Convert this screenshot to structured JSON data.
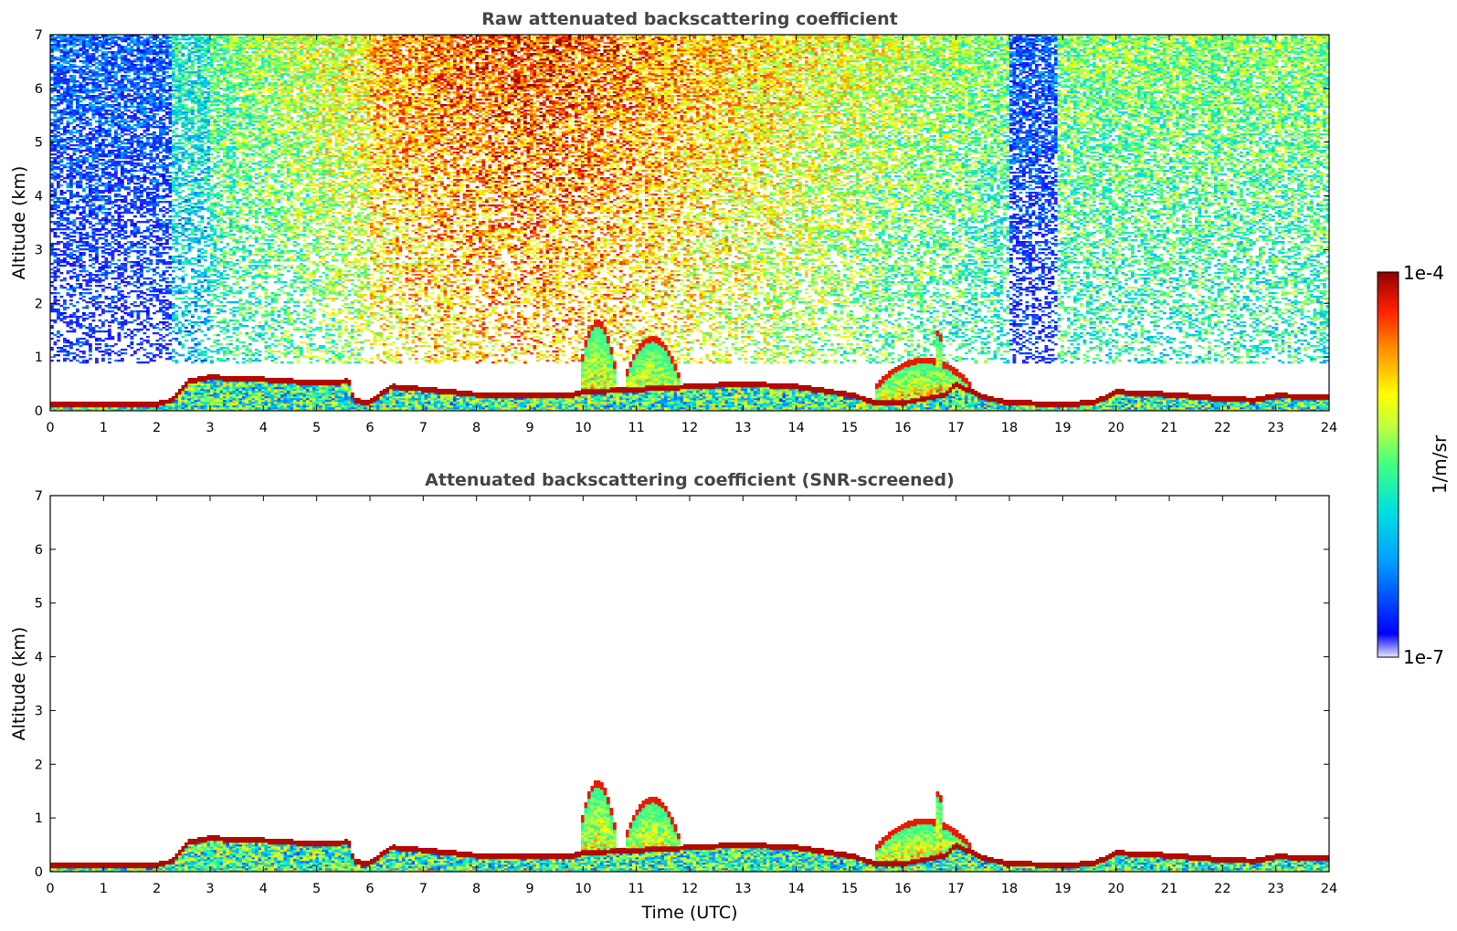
{
  "chart_data": [
    {
      "type": "heatmap",
      "title": "Raw attenuated backscattering coefficient",
      "xlabel": "",
      "ylabel": "Altitude (km)",
      "xlim": [
        0,
        24
      ],
      "ylim": [
        0,
        7
      ],
      "xticks": [
        "0",
        "1",
        "2",
        "3",
        "4",
        "5",
        "6",
        "7",
        "8",
        "9",
        "10",
        "11",
        "12",
        "13",
        "14",
        "15",
        "16",
        "17",
        "18",
        "19",
        "20",
        "21",
        "22",
        "23",
        "24"
      ],
      "yticks": [
        "0",
        "1",
        "2",
        "3",
        "4",
        "5",
        "6",
        "7"
      ],
      "screened": false,
      "boundary_layer_top_km": [
        [
          0,
          0.12
        ],
        [
          2,
          0.12
        ],
        [
          2.3,
          0.2
        ],
        [
          2.6,
          0.55
        ],
        [
          3,
          0.62
        ],
        [
          4,
          0.58
        ],
        [
          5,
          0.52
        ],
        [
          5.6,
          0.55
        ],
        [
          5.7,
          0.18
        ],
        [
          6,
          0.15
        ],
        [
          6.4,
          0.45
        ],
        [
          6.8,
          0.42
        ],
        [
          7.2,
          0.38
        ],
        [
          8,
          0.3
        ],
        [
          9,
          0.3
        ],
        [
          9.8,
          0.3
        ],
        [
          10,
          0.35
        ],
        [
          11,
          0.4
        ],
        [
          12,
          0.45
        ],
        [
          13,
          0.5
        ],
        [
          14,
          0.45
        ],
        [
          15,
          0.3
        ],
        [
          15.5,
          0.15
        ],
        [
          16,
          0.15
        ],
        [
          16.8,
          0.3
        ],
        [
          17,
          0.5
        ],
        [
          17.5,
          0.25
        ],
        [
          18,
          0.15
        ],
        [
          19,
          0.12
        ],
        [
          19.6,
          0.15
        ],
        [
          20,
          0.35
        ],
        [
          21,
          0.3
        ],
        [
          22,
          0.22
        ],
        [
          22.6,
          0.2
        ],
        [
          23,
          0.28
        ],
        [
          24,
          0.25
        ]
      ],
      "cloud_features": [
        {
          "t_start": 9.95,
          "t_end": 10.6,
          "top_km": 1.7
        },
        {
          "t_start": 10.8,
          "t_end": 11.8,
          "top_km": 1.4
        },
        {
          "t_start": 15.5,
          "t_end": 17.3,
          "top_km": 1.0
        },
        {
          "t_start": 16.6,
          "t_end": 16.75,
          "top_km": 1.6
        }
      ]
    },
    {
      "type": "heatmap",
      "title": "Attenuated backscattering coefficient (SNR-screened)",
      "xlabel": "Time (UTC)",
      "ylabel": "Altitude (km)",
      "xlim": [
        0,
        24
      ],
      "ylim": [
        0,
        7
      ],
      "xticks": [
        "0",
        "1",
        "2",
        "3",
        "4",
        "5",
        "6",
        "7",
        "8",
        "9",
        "10",
        "11",
        "12",
        "13",
        "14",
        "15",
        "16",
        "17",
        "18",
        "19",
        "20",
        "21",
        "22",
        "23",
        "24"
      ],
      "yticks": [
        "0",
        "1",
        "2",
        "3",
        "4",
        "5",
        "6",
        "7"
      ],
      "screened": true
    }
  ],
  "colorbar": {
    "label": "1/m/sr",
    "max_label": "1e-4",
    "min_label": "1e-7",
    "min_value": 1e-07,
    "max_value": 0.0001,
    "scale": "log",
    "colormap": [
      "#ffffff",
      "#e6e6ff",
      "#0000ff",
      "#00a0ff",
      "#00e0e0",
      "#40ff80",
      "#c0ff40",
      "#ffff00",
      "#ff9000",
      "#ff2000",
      "#900000"
    ]
  }
}
